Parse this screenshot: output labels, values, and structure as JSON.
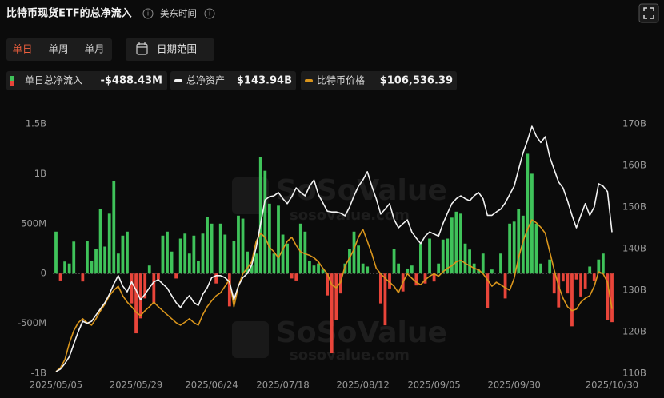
{
  "header": {
    "title": "比特币现货ETF的总净流入",
    "timezone": "美东时间",
    "tabs": [
      "单日",
      "单周",
      "单月"
    ],
    "date_range": "日期范围"
  },
  "legend": [
    {
      "value": "-$488.43M"
    },
    {
      "value": "$143.94B"
    },
    {
      "value": "$106,536.39"
    }
  ],
  "chart_data": {
    "type": "combo",
    "watermark": "SoSoValue",
    "watermark_url": "sosovalue.com",
    "categories": [
      "2025/05/05",
      null,
      null,
      null,
      null,
      null,
      null,
      null,
      null,
      null,
      null,
      null,
      null,
      null,
      null,
      null,
      null,
      null,
      "2025/05/29",
      null,
      null,
      null,
      null,
      null,
      null,
      null,
      null,
      null,
      null,
      null,
      null,
      null,
      null,
      null,
      null,
      "2025/06/24",
      null,
      null,
      null,
      null,
      null,
      null,
      null,
      null,
      null,
      null,
      null,
      null,
      null,
      null,
      null,
      "2025/07/18",
      null,
      null,
      null,
      null,
      null,
      null,
      null,
      null,
      null,
      null,
      null,
      null,
      null,
      null,
      null,
      null,
      null,
      "2025/08/12",
      null,
      null,
      null,
      null,
      null,
      null,
      null,
      null,
      null,
      null,
      null,
      null,
      null,
      null,
      null,
      "2025/09/05",
      null,
      null,
      null,
      null,
      null,
      null,
      null,
      null,
      null,
      null,
      null,
      null,
      null,
      null,
      null,
      null,
      null,
      "2025/09/30",
      null,
      null,
      null,
      null,
      null,
      null,
      null,
      null,
      null,
      null,
      null,
      null,
      null,
      null,
      null,
      null,
      null,
      null,
      null,
      null,
      null,
      "2025/10/30"
    ],
    "ylim": [
      -1000,
      1500
    ],
    "yticks": [
      {
        "value": -1000,
        "label": "-1B"
      },
      {
        "value": -500,
        "label": "-500M"
      },
      0,
      {
        "value": 500,
        "label": "500M"
      },
      {
        "value": 1000,
        "label": "1B"
      },
      {
        "value": 1500,
        "label": "1.5B"
      }
    ],
    "y2lim": [
      110,
      170
    ],
    "y2ticks": [
      {
        "value": 110,
        "label": "110B"
      },
      {
        "value": 120,
        "label": "120B"
      },
      {
        "value": 130,
        "label": "130B"
      },
      {
        "value": 140,
        "label": "140B"
      },
      {
        "value": 150,
        "label": "150B"
      },
      {
        "value": 160,
        "label": "160B"
      },
      {
        "value": 170,
        "label": "170B"
      }
    ],
    "grid": false,
    "bar_colors": {
      "positive": "#3fc35a",
      "negative": "#e9453a"
    },
    "series": [
      {
        "name": "单日总净流入",
        "type": "bar",
        "values": [
          420,
          -70,
          120,
          100,
          320,
          0,
          -80,
          330,
          130,
          250,
          650,
          270,
          600,
          930,
          200,
          380,
          420,
          -300,
          -600,
          -450,
          -250,
          80,
          -300,
          -60,
          380,
          420,
          220,
          -50,
          350,
          400,
          200,
          380,
          130,
          400,
          570,
          500,
          -100,
          500,
          390,
          -330,
          330,
          580,
          550,
          220,
          80,
          200,
          1170,
          1030,
          700,
          200,
          680,
          390,
          300,
          -50,
          -70,
          500,
          420,
          130,
          80,
          100,
          40,
          -220,
          -800,
          -470,
          -200,
          100,
          250,
          420,
          280,
          100,
          70,
          0,
          0,
          -300,
          -520,
          -150,
          250,
          100,
          -180,
          50,
          80,
          -120,
          300,
          -100,
          350,
          -80,
          100,
          340,
          350,
          560,
          620,
          600,
          300,
          240,
          100,
          40,
          200,
          -350,
          40,
          0,
          200,
          -250,
          500,
          520,
          650,
          580,
          1200,
          1000,
          500,
          100,
          0,
          140,
          -200,
          -340,
          -80,
          -200,
          -530,
          -60,
          -230,
          -150,
          70,
          -70,
          140,
          200,
          -470,
          -488.43
        ]
      },
      {
        "name": "总净资产",
        "type": "line",
        "axis": "y2",
        "color": "#f2f2f2",
        "values": [
          110.4,
          111,
          112.3,
          114,
          117,
          120,
          122.5,
          122,
          122.5,
          124,
          125.5,
          127,
          129,
          131.5,
          133.5,
          131,
          129.6,
          132,
          130,
          127.7,
          129,
          130.6,
          132,
          132.5,
          131.5,
          130.5,
          128.7,
          127,
          125.8,
          127.5,
          128.7,
          127,
          126.3,
          129,
          130.6,
          133,
          133.5,
          133.5,
          133,
          132,
          127.7,
          131,
          133,
          134,
          136,
          140.2,
          146,
          151.7,
          152.5,
          152.7,
          153.5,
          152,
          150.8,
          152.5,
          154.6,
          153.5,
          152.7,
          155,
          156.5,
          153,
          151,
          149,
          148.8,
          148.8,
          148.5,
          147.9,
          150,
          152.7,
          155,
          156.5,
          158.5,
          155,
          152,
          148.3,
          149.5,
          150.8,
          147,
          145,
          146,
          146.9,
          144,
          142.5,
          141.2,
          143,
          144,
          143.5,
          143,
          146,
          148.5,
          150.8,
          152,
          152.7,
          152,
          151.5,
          152.7,
          153.5,
          152,
          148,
          148,
          148.8,
          149.5,
          151,
          153,
          155,
          159,
          163,
          166,
          169.4,
          167,
          165.5,
          166.9,
          162,
          159,
          156,
          154.6,
          151.5,
          148,
          145,
          148,
          150.8,
          148,
          150,
          155.6,
          155,
          153.7,
          143.94
        ]
      },
      {
        "name": "比特币价格",
        "type": "line",
        "axis": "none",
        "color": "#d9951c",
        "values": [
          94000,
          94800,
          96400,
          99700,
          102200,
          103800,
          104600,
          103800,
          103300,
          104600,
          106200,
          107500,
          109200,
          110300,
          111100,
          109200,
          107900,
          107000,
          105900,
          105200,
          106200,
          107000,
          107900,
          107000,
          106200,
          105400,
          104600,
          103800,
          103300,
          103900,
          104600,
          103800,
          103300,
          105400,
          107000,
          108200,
          109200,
          109800,
          111100,
          112400,
          107000,
          111100,
          113600,
          114700,
          116000,
          120100,
          121700,
          120900,
          118900,
          118000,
          116800,
          118500,
          120100,
          120900,
          119300,
          118000,
          117600,
          117300,
          116800,
          116000,
          114700,
          113600,
          111400,
          110800,
          111900,
          115200,
          116800,
          118500,
          120900,
          122500,
          120100,
          117600,
          114700,
          113600,
          112700,
          111900,
          111100,
          109800,
          111900,
          113600,
          112700,
          111900,
          111400,
          112400,
          113100,
          113600,
          113100,
          114000,
          114700,
          115200,
          116000,
          116300,
          115700,
          115200,
          114700,
          114400,
          113600,
          112400,
          111100,
          111900,
          111400,
          110800,
          110300,
          112700,
          116800,
          120100,
          122500,
          124400,
          123800,
          122900,
          121700,
          118000,
          114400,
          111100,
          108700,
          107000,
          106200,
          106500,
          107900,
          108700,
          109200,
          111100,
          114000,
          113600,
          111900,
          106536.39
        ]
      }
    ]
  }
}
